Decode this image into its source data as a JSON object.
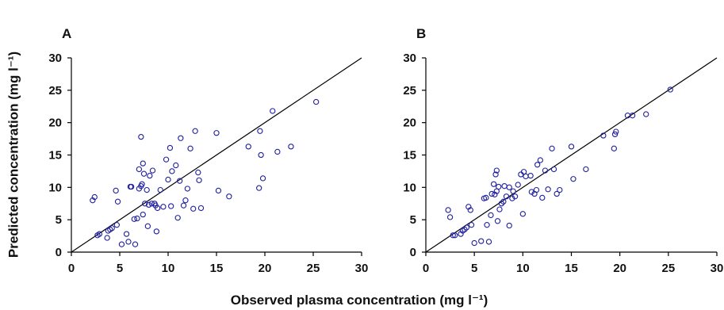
{
  "figure": {
    "ylabel": "Predicted concentration (mg l⁻¹)",
    "xlabel": "Observed plasma concentration (mg l⁻¹)",
    "point_color": "#1f1fa0",
    "line_color": "#000000"
  },
  "chart_data": [
    {
      "type": "scatter",
      "panel": "A",
      "xlim": [
        0,
        30
      ],
      "ylim": [
        0,
        30
      ],
      "xticks": [
        0,
        5,
        10,
        15,
        20,
        25,
        30
      ],
      "yticks": [
        0,
        5,
        10,
        15,
        20,
        25,
        30
      ],
      "identity_line": true,
      "points": [
        [
          2.2,
          8.0
        ],
        [
          2.4,
          8.5
        ],
        [
          2.7,
          2.6
        ],
        [
          2.9,
          2.8
        ],
        [
          3.7,
          2.2
        ],
        [
          3.8,
          3.3
        ],
        [
          4.0,
          3.5
        ],
        [
          4.2,
          3.7
        ],
        [
          4.6,
          9.5
        ],
        [
          4.7,
          4.2
        ],
        [
          4.8,
          7.8
        ],
        [
          5.2,
          1.2
        ],
        [
          5.7,
          2.8
        ],
        [
          5.9,
          1.6
        ],
        [
          6.1,
          10.1
        ],
        [
          6.2,
          10.1
        ],
        [
          6.5,
          5.1
        ],
        [
          6.6,
          1.2
        ],
        [
          6.8,
          5.2
        ],
        [
          7.0,
          12.8
        ],
        [
          7.0,
          9.8
        ],
        [
          7.2,
          17.8
        ],
        [
          7.2,
          10.2
        ],
        [
          7.3,
          10.5
        ],
        [
          7.4,
          13.7
        ],
        [
          7.4,
          5.8
        ],
        [
          7.5,
          12.1
        ],
        [
          7.6,
          7.5
        ],
        [
          7.8,
          9.6
        ],
        [
          7.9,
          4.0
        ],
        [
          8.0,
          7.3
        ],
        [
          8.1,
          11.8
        ],
        [
          8.3,
          7.5
        ],
        [
          8.4,
          12.6
        ],
        [
          8.6,
          7.5
        ],
        [
          8.7,
          7.2
        ],
        [
          8.8,
          3.2
        ],
        [
          8.9,
          6.8
        ],
        [
          9.2,
          9.6
        ],
        [
          9.5,
          7.0
        ],
        [
          9.8,
          14.3
        ],
        [
          10.0,
          11.2
        ],
        [
          10.2,
          16.1
        ],
        [
          10.3,
          7.1
        ],
        [
          10.4,
          12.5
        ],
        [
          10.8,
          13.4
        ],
        [
          11.0,
          5.3
        ],
        [
          11.2,
          11.0
        ],
        [
          11.3,
          17.6
        ],
        [
          11.6,
          7.2
        ],
        [
          11.8,
          8.0
        ],
        [
          12.0,
          9.8
        ],
        [
          12.3,
          16.0
        ],
        [
          12.6,
          6.7
        ],
        [
          12.8,
          18.7
        ],
        [
          13.1,
          12.3
        ],
        [
          13.2,
          11.1
        ],
        [
          13.4,
          6.8
        ],
        [
          15.0,
          18.4
        ],
        [
          15.2,
          9.5
        ],
        [
          16.3,
          8.6
        ],
        [
          18.3,
          16.3
        ],
        [
          19.4,
          9.9
        ],
        [
          19.5,
          18.7
        ],
        [
          19.6,
          15.0
        ],
        [
          19.8,
          11.4
        ],
        [
          20.8,
          21.8
        ],
        [
          21.3,
          15.5
        ],
        [
          22.7,
          16.3
        ],
        [
          25.3,
          23.2
        ]
      ]
    },
    {
      "type": "scatter",
      "panel": "B",
      "xlim": [
        0,
        30
      ],
      "ylim": [
        0,
        30
      ],
      "xticks": [
        0,
        5,
        10,
        15,
        20,
        25,
        30
      ],
      "yticks": [
        0,
        5,
        10,
        15,
        20,
        25,
        30
      ],
      "identity_line": true,
      "points": [
        [
          2.3,
          6.5
        ],
        [
          2.5,
          5.4
        ],
        [
          2.8,
          2.6
        ],
        [
          3.0,
          2.6
        ],
        [
          3.6,
          2.8
        ],
        [
          3.8,
          3.3
        ],
        [
          4.0,
          3.5
        ],
        [
          4.2,
          3.8
        ],
        [
          4.4,
          7.0
        ],
        [
          4.6,
          6.5
        ],
        [
          4.7,
          4.2
        ],
        [
          5.0,
          1.4
        ],
        [
          5.7,
          1.7
        ],
        [
          6.0,
          8.3
        ],
        [
          6.2,
          8.4
        ],
        [
          6.3,
          4.2
        ],
        [
          6.5,
          1.6
        ],
        [
          6.7,
          5.7
        ],
        [
          6.8,
          9.0
        ],
        [
          7.0,
          10.5
        ],
        [
          7.1,
          8.9
        ],
        [
          7.2,
          12.0
        ],
        [
          7.3,
          12.6
        ],
        [
          7.3,
          9.4
        ],
        [
          7.4,
          4.8
        ],
        [
          7.5,
          10.1
        ],
        [
          7.6,
          6.6
        ],
        [
          7.8,
          7.5
        ],
        [
          8.0,
          7.8
        ],
        [
          8.1,
          10.2
        ],
        [
          8.3,
          8.6
        ],
        [
          8.6,
          10.0
        ],
        [
          8.6,
          4.1
        ],
        [
          8.9,
          8.3
        ],
        [
          9.0,
          9.4
        ],
        [
          9.2,
          8.6
        ],
        [
          9.5,
          10.4
        ],
        [
          9.8,
          12.0
        ],
        [
          10.0,
          5.9
        ],
        [
          10.1,
          12.4
        ],
        [
          10.3,
          11.7
        ],
        [
          10.8,
          11.8
        ],
        [
          10.9,
          9.3
        ],
        [
          11.2,
          9.0
        ],
        [
          11.4,
          9.6
        ],
        [
          11.5,
          13.5
        ],
        [
          11.8,
          14.2
        ],
        [
          12.0,
          8.4
        ],
        [
          12.3,
          12.6
        ],
        [
          12.6,
          9.7
        ],
        [
          13.0,
          16.0
        ],
        [
          13.2,
          12.8
        ],
        [
          13.5,
          9.0
        ],
        [
          13.8,
          9.6
        ],
        [
          15.0,
          16.3
        ],
        [
          15.2,
          11.3
        ],
        [
          16.5,
          12.8
        ],
        [
          18.3,
          18.0
        ],
        [
          19.4,
          16.0
        ],
        [
          19.5,
          18.2
        ],
        [
          19.6,
          18.6
        ],
        [
          20.8,
          21.1
        ],
        [
          21.3,
          21.1
        ],
        [
          22.7,
          21.3
        ],
        [
          25.2,
          25.1
        ]
      ]
    }
  ]
}
